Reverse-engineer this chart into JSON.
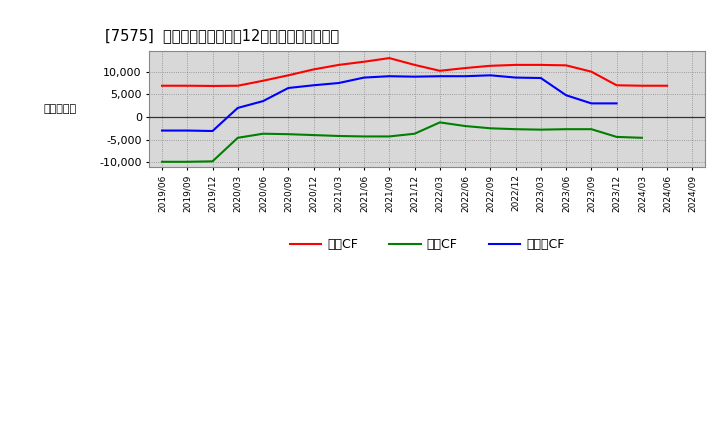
{
  "title": "[7575]  キャッシュフローの12か月移動合計の推移",
  "ylabel": "（百万円）",
  "background_color": "#ffffff",
  "plot_bg_color": "#d8d8d8",
  "grid_color": "#888888",
  "x_labels": [
    "2019/06",
    "2019/09",
    "2019/12",
    "2020/03",
    "2020/06",
    "2020/09",
    "2020/12",
    "2021/03",
    "2021/06",
    "2021/09",
    "2021/12",
    "2022/03",
    "2022/06",
    "2022/09",
    "2022/12",
    "2023/03",
    "2023/06",
    "2023/09",
    "2023/12",
    "2024/03",
    "2024/06",
    "2024/09"
  ],
  "operating_cf": [
    6900,
    6900,
    6850,
    6900,
    8000,
    9200,
    10500,
    11500,
    12200,
    13000,
    11500,
    10200,
    10800,
    11300,
    11500,
    11500,
    11400,
    10000,
    7000,
    6900,
    6900,
    null
  ],
  "investing_cf": [
    -9900,
    -9900,
    -9800,
    -4600,
    -3700,
    -3800,
    -4000,
    -4200,
    -4300,
    -4300,
    -3700,
    -1200,
    -2000,
    -2500,
    -2700,
    -2800,
    -2700,
    -2700,
    -4400,
    -4600,
    null,
    null
  ],
  "free_cf": [
    -3000,
    -3000,
    -3100,
    2000,
    3500,
    6400,
    7000,
    7500,
    8700,
    9000,
    8900,
    9000,
    9000,
    9200,
    8700,
    8600,
    4800,
    3000,
    3000,
    null,
    null,
    null
  ],
  "operating_color": "#ff0000",
  "investing_color": "#008000",
  "free_color": "#0000ff",
  "ylim": [
    -11000,
    14500
  ],
  "yticks": [
    -10000,
    -5000,
    0,
    5000,
    10000
  ],
  "legend_labels": [
    "営業CF",
    "投資CF",
    "フリーCF"
  ]
}
